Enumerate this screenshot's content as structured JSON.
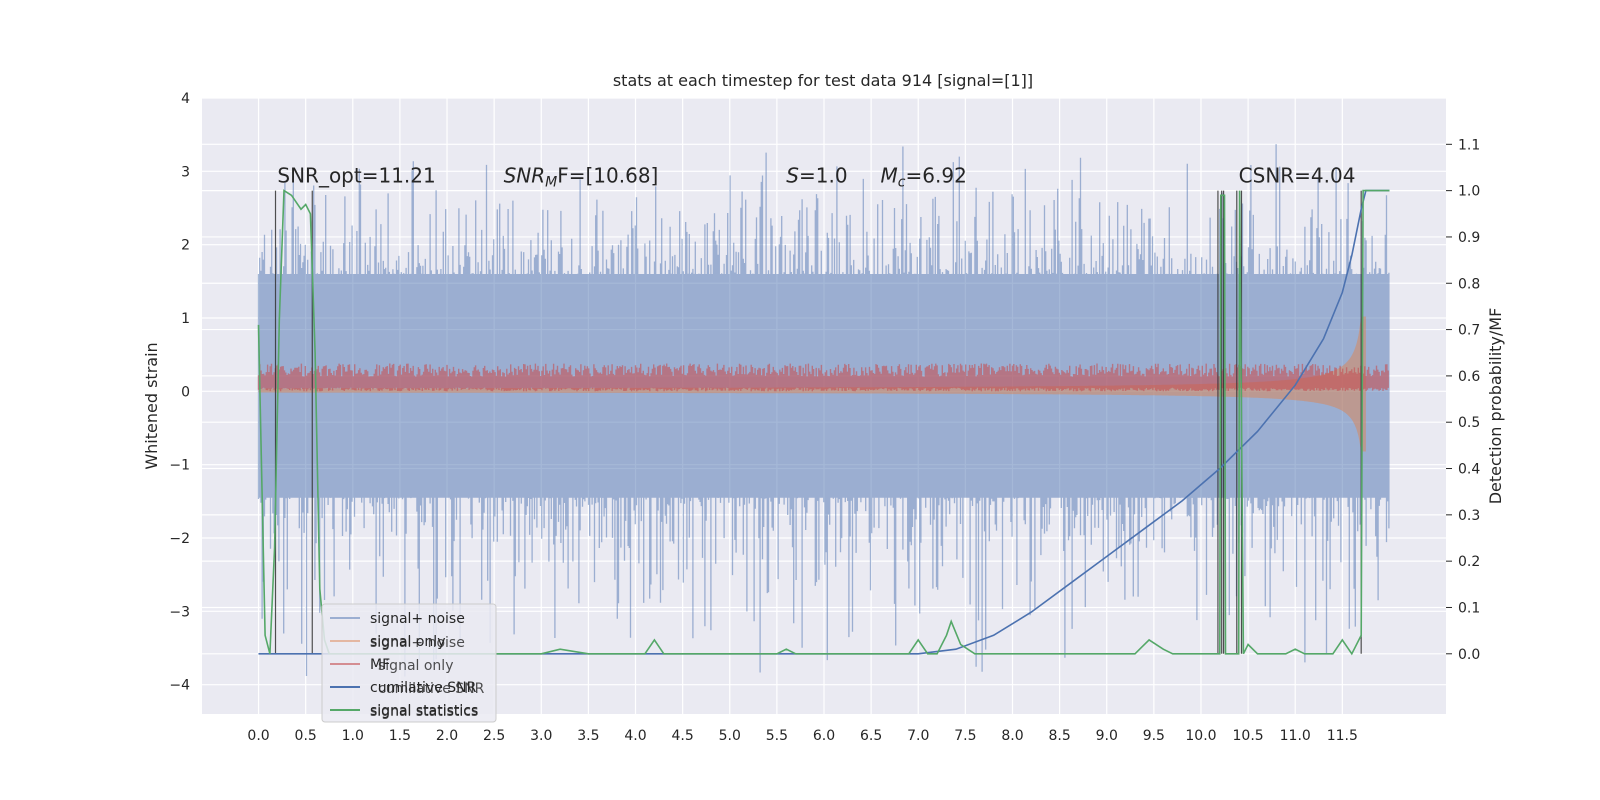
{
  "chart_data": {
    "type": "line",
    "title": "stats at each timestep for test data 914 [signal=[1]]",
    "xlabel": "",
    "ylabel": "Whitened strain",
    "y2label": "Detection probability/MF",
    "xlim": [
      -0.6,
      12.6
    ],
    "ylim": [
      -4.4,
      4.0
    ],
    "y2lim": [
      -0.13,
      1.2
    ],
    "x_ticks": [
      0.0,
      0.5,
      1.0,
      1.5,
      2.0,
      2.5,
      3.0,
      3.5,
      4.0,
      4.5,
      5.0,
      5.5,
      6.0,
      6.5,
      7.0,
      7.5,
      8.0,
      8.5,
      9.0,
      9.5,
      10.0,
      10.5,
      11.0,
      11.5
    ],
    "x_tick_labels": [
      "0.0",
      "0.5",
      "1.0",
      "1.5",
      "2.0",
      "2.5",
      "3.0",
      "3.5",
      "4.0",
      "4.5",
      "5.0",
      "5.5",
      "6.0",
      "6.5",
      "7.0",
      "7.5",
      "8.0",
      "8.5",
      "9.0",
      "9.5",
      "10.0",
      "10.5",
      "11.0",
      "11.5"
    ],
    "y_ticks": [
      -4,
      -3,
      -2,
      -1,
      0,
      1,
      2,
      3,
      4
    ],
    "y_tick_labels": [
      "−4",
      "−3",
      "−2",
      "−1",
      "0",
      "1",
      "2",
      "3",
      "4"
    ],
    "y2_ticks": [
      0.0,
      0.1,
      0.2,
      0.3,
      0.4,
      0.5,
      0.6,
      0.7,
      0.8,
      0.9,
      1.0,
      1.1
    ],
    "y2_tick_labels": [
      "0.0",
      "0.1",
      "0.2",
      "0.3",
      "0.4",
      "0.5",
      "0.6",
      "0.7",
      "0.8",
      "0.9",
      "1.0",
      "1.1"
    ],
    "grid": true,
    "legend_position": "lower-left",
    "annotations": [
      {
        "text": "SNR_opt=11.21",
        "x": 0.2,
        "y": 2.85
      },
      {
        "text": "SNR",
        "sub": "M",
        "rest": "F=[10.68]",
        "italic": true,
        "x": 2.6,
        "y": 2.85
      },
      {
        "text": "S",
        "rest": "=1.0",
        "italic": true,
        "x": 5.6,
        "y": 2.85
      },
      {
        "text": "M",
        "sub": "c",
        "rest": "=6.92",
        "italic": true,
        "x": 6.6,
        "y": 2.85
      },
      {
        "text": "CSNR=4.04",
        "x": 10.4,
        "y": 2.85
      }
    ],
    "series": [
      {
        "name": "signal+ noise",
        "color": "#4c72b0",
        "alpha": 0.5,
        "axis": "left",
        "kind": "noise_band",
        "x_range": [
          0.0,
          12.0
        ],
        "core_low": -1.45,
        "core_high": 1.6,
        "spike_max": 3.6,
        "spike_min": -4.1
      },
      {
        "name": "signal only",
        "color": "#dd8452",
        "alpha": 0.5,
        "axis": "left",
        "kind": "chirp_envelope",
        "x_range": [
          0.0,
          11.75
        ],
        "amp_start": 0.02,
        "amp_end": 1.0
      },
      {
        "name": "MF",
        "color": "#c44e52",
        "alpha": 0.6,
        "axis": "left",
        "kind": "band",
        "x_range": [
          0.0,
          12.0
        ],
        "low": 0.0,
        "high": 0.3
      },
      {
        "name": "cumilative SNR",
        "color": "#4c72b0",
        "axis": "right",
        "x": [
          0.0,
          7.0,
          7.4,
          7.8,
          8.2,
          8.6,
          9.0,
          9.4,
          9.8,
          10.2,
          10.6,
          11.0,
          11.3,
          11.5,
          11.6,
          11.7,
          11.75,
          12.0
        ],
        "y": [
          0.0,
          0.0,
          0.01,
          0.04,
          0.09,
          0.15,
          0.21,
          0.27,
          0.33,
          0.4,
          0.48,
          0.58,
          0.68,
          0.78,
          0.86,
          0.96,
          1.0,
          1.0
        ]
      },
      {
        "name": "signal statistics",
        "color": "#55a868",
        "axis": "right",
        "x": [
          0.0,
          0.07,
          0.12,
          0.17,
          0.22,
          0.27,
          0.35,
          0.45,
          0.5,
          0.55,
          0.6,
          0.65,
          0.7,
          0.75,
          0.8,
          1.0,
          3.0,
          3.2,
          3.5,
          4.1,
          4.2,
          4.3,
          5.5,
          5.6,
          5.7,
          6.9,
          7.0,
          7.1,
          7.2,
          7.3,
          7.35,
          7.45,
          7.6,
          9.3,
          9.45,
          9.6,
          9.7,
          10.2,
          10.21,
          10.25,
          10.26,
          10.4,
          10.41,
          10.45,
          10.5,
          10.6,
          10.75,
          10.9,
          11.0,
          11.1,
          11.4,
          11.5,
          11.6,
          11.7,
          11.72,
          11.8,
          12.0
        ],
        "y": [
          0.71,
          0.04,
          0.0,
          0.23,
          0.72,
          1.0,
          0.99,
          0.96,
          0.97,
          0.95,
          0.65,
          0.14,
          0.03,
          0.0,
          0.0,
          0.0,
          0.0,
          0.01,
          0.0,
          0.0,
          0.03,
          0.0,
          0.0,
          0.01,
          0.0,
          0.0,
          0.03,
          0.0,
          0.0,
          0.04,
          0.07,
          0.02,
          0.0,
          0.0,
          0.03,
          0.01,
          0.0,
          0.0,
          0.99,
          0.99,
          0.0,
          0.0,
          1.0,
          0.0,
          0.02,
          0.0,
          0.0,
          0.0,
          0.01,
          0.0,
          0.0,
          0.03,
          0.0,
          0.04,
          1.0,
          1.0,
          1.0
        ]
      },
      {
        "name": "",
        "color": "#333333",
        "axis": "right",
        "kind": "vlines",
        "x": [
          0.18,
          0.57,
          10.18,
          10.22,
          10.24,
          10.38,
          10.43,
          11.7
        ],
        "y": [
          [
            0.0,
            1.0
          ],
          [
            0.0,
            1.0
          ],
          [
            0.0,
            1.0
          ],
          [
            0.0,
            1.0
          ],
          [
            0.0,
            1.0
          ],
          [
            0.0,
            1.0
          ],
          [
            0.0,
            1.0
          ],
          [
            0.0,
            1.0
          ]
        ]
      }
    ],
    "legend_ghost": [
      "signal+ noise",
      "signal only",
      "cumilative SNR",
      "signal statistics"
    ]
  }
}
